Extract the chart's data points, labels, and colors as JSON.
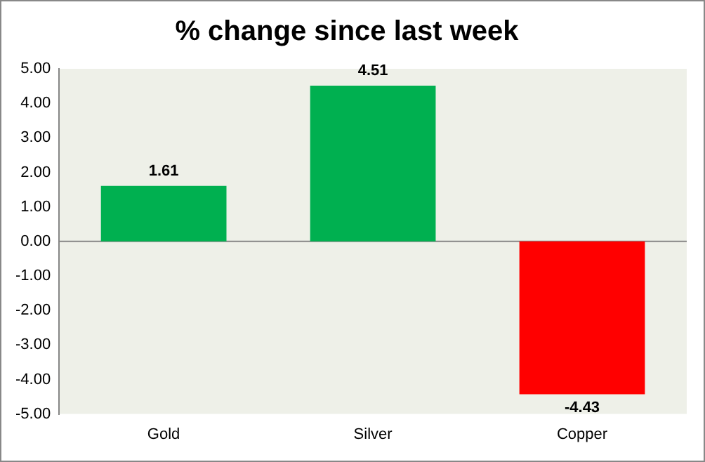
{
  "chart_data": {
    "type": "bar",
    "title": "% change since last week",
    "categories": [
      "Gold",
      "Silver",
      "Copper"
    ],
    "values": [
      1.61,
      4.51,
      -4.43
    ],
    "colors": [
      "#00b050",
      "#00b050",
      "#ff0000"
    ],
    "ylim": [
      -5,
      5
    ],
    "yticks": [
      {
        "value": -5,
        "label": "-5.00"
      },
      {
        "value": -4,
        "label": "-4.00"
      },
      {
        "value": -3,
        "label": "-3.00"
      },
      {
        "value": -2,
        "label": "-2.00"
      },
      {
        "value": -1,
        "label": "-1.00"
      },
      {
        "value": 0,
        "label": "0.00"
      },
      {
        "value": 1,
        "label": "1.00"
      },
      {
        "value": 2,
        "label": "2.00"
      },
      {
        "value": 3,
        "label": "3.00"
      },
      {
        "value": 4,
        "label": "4.00"
      },
      {
        "value": 5,
        "label": "5.00"
      }
    ],
    "ref_lines": [
      {
        "axis": "y",
        "value": 0,
        "color": "#868686"
      }
    ],
    "grid": false,
    "legend": false,
    "data_labels": true
  }
}
